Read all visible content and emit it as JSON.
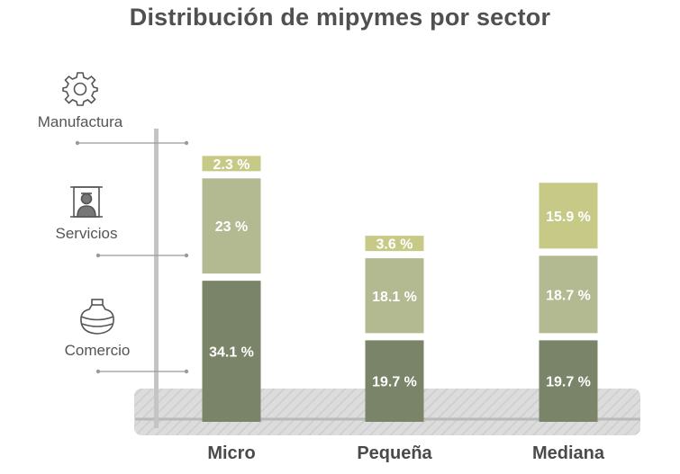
{
  "chart_data": {
    "type": "bar",
    "stacked": true,
    "title": "Distribución de mipymes por sector",
    "categories": [
      "Micro",
      "Pequeña",
      "Mediana"
    ],
    "series": [
      {
        "name": "Comercio",
        "values": [
          34.1,
          19.7,
          19.7
        ],
        "labels": [
          "34.1 %",
          "19.7 %",
          "19.7 %"
        ],
        "color": "#7a8468"
      },
      {
        "name": "Servicios",
        "values": [
          23,
          18.1,
          18.7
        ],
        "labels": [
          "23 %",
          "18.1 %",
          "18.7 %"
        ],
        "color": "#b3b990"
      },
      {
        "name": "Manufactura",
        "values": [
          2.3,
          3.6,
          15.9
        ],
        "labels": [
          "2.3 %",
          "3.6 %",
          "15.9 %"
        ],
        "color": "#c7ca86"
      }
    ],
    "legend": [
      {
        "label": "Manufactura",
        "icon": "gear-icon"
      },
      {
        "label": "Servicios",
        "icon": "worker-icon"
      },
      {
        "label": "Comercio",
        "icon": "jar-icon"
      }
    ]
  }
}
